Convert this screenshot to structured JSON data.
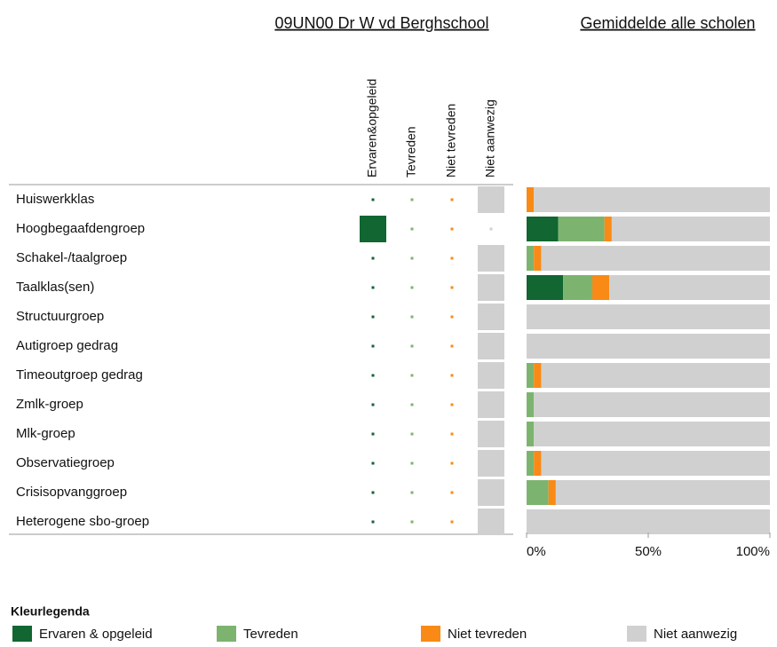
{
  "chart_data": [
    {
      "type": "matrix",
      "title": "09UN00 Dr W vd Berghschool",
      "categories": [
        "Huiswerkklas",
        "Hoogbegaafdengroep",
        "Schakel-/taalgroep",
        "Taalklas(sen)",
        "Structuurgroep",
        "Autigroep gedrag",
        "Timeoutgroep gedrag",
        "Zmlk-groep",
        "Mlk-groep",
        "Observatiegroep",
        "Crisisopvanggroep",
        "Heterogene sbo-groep"
      ],
      "series": [
        {
          "name": "Ervaren&opgeleid",
          "color": "#116631",
          "values": [
            0,
            100,
            0,
            0,
            0,
            0,
            0,
            0,
            0,
            0,
            0,
            0
          ]
        },
        {
          "name": "Tevreden",
          "color": "#7cb46f",
          "values": [
            0,
            0,
            0,
            0,
            0,
            0,
            0,
            0,
            0,
            0,
            0,
            0
          ]
        },
        {
          "name": "Niet tevreden",
          "color": "#f98a16",
          "values": [
            0,
            0,
            0,
            0,
            0,
            0,
            0,
            0,
            0,
            0,
            0,
            0
          ]
        },
        {
          "name": "Niet aanwezig",
          "color": "#d0d0d0",
          "values": [
            100,
            0,
            100,
            100,
            100,
            100,
            100,
            100,
            100,
            100,
            100,
            100
          ]
        }
      ]
    },
    {
      "type": "stacked_bar",
      "title": "Gemiddelde alle scholen",
      "legend_title": "Kleurlegenda",
      "xlim": [
        0,
        100
      ],
      "xticks": [
        {
          "value": 0,
          "label": "0%"
        },
        {
          "value": 50,
          "label": "50%"
        },
        {
          "value": 100,
          "label": "100%"
        }
      ],
      "series": [
        {
          "name": "Ervaren & opgeleid",
          "color": "#116631",
          "values": [
            0,
            13,
            0,
            15,
            0,
            0,
            0,
            0,
            0,
            0,
            0,
            0
          ]
        },
        {
          "name": "Tevreden",
          "color": "#7cb46f",
          "values": [
            0,
            19,
            3,
            12,
            0,
            0,
            3,
            3,
            3,
            3,
            9,
            0
          ]
        },
        {
          "name": "Niet tevreden",
          "color": "#f98a16",
          "values": [
            3,
            3,
            3,
            7,
            0,
            0,
            3,
            0,
            0,
            3,
            3,
            0
          ]
        },
        {
          "name": "Niet aanwezig",
          "color": "#d0d0d0",
          "values": [
            97,
            65,
            94,
            66,
            100,
            100,
            94,
            97,
            97,
            94,
            88,
            100
          ]
        }
      ]
    }
  ]
}
